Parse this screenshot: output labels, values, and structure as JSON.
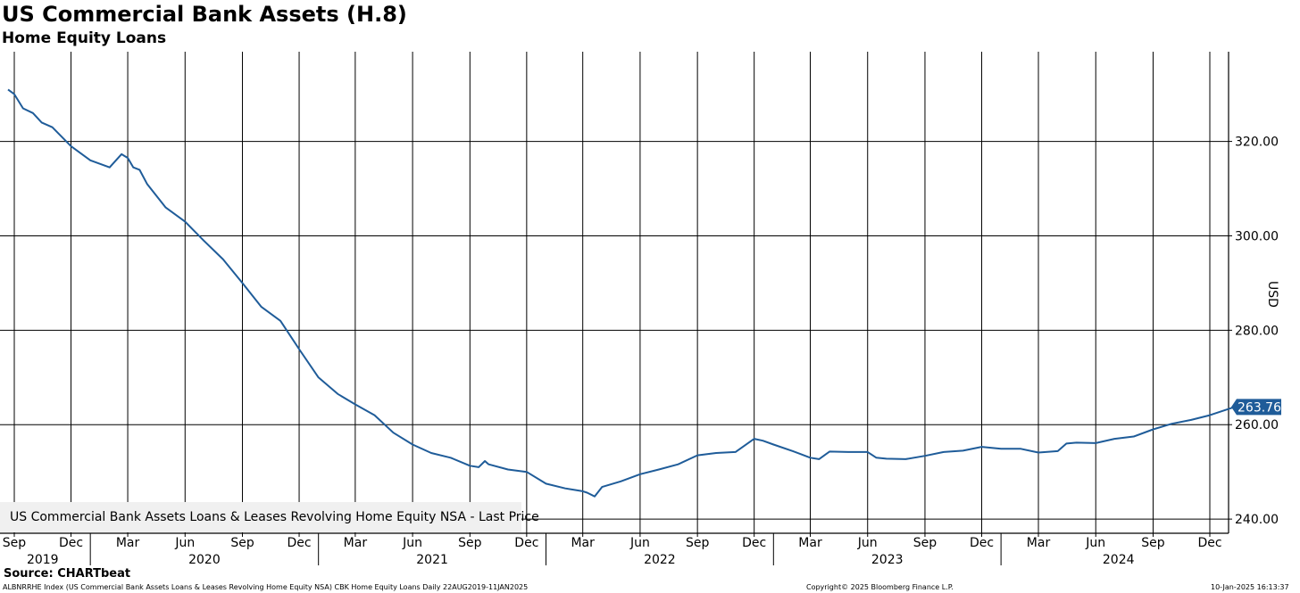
{
  "title": "US Commercial Bank Assets (H.8)",
  "subtitle": "Home Equity Loans",
  "source": "Source: CHARTbeat",
  "footer": {
    "left": "ALBNRRHE Index (US Commercial Bank Assets Loans & Leases Revolving Home Equity NSA) CBK Home Equity Loans  Daily 22AUG2019-11JAN2025",
    "center": "Copyright© 2025 Bloomberg Finance L.P.",
    "right": "10-Jan-2025 16:13:37"
  },
  "colors": {
    "series": "#1f5c99",
    "grid": "#000000"
  },
  "chart_data": {
    "type": "line",
    "ylabel": "USD",
    "ylim": [
      237,
      339
    ],
    "yticks": [
      240,
      260,
      280,
      300,
      320
    ],
    "ytick_labels": [
      "240.00",
      "260.00",
      "280.00",
      "300.00",
      "320.00"
    ],
    "x_months": [
      "Sep",
      "Dec",
      "Mar",
      "Jun",
      "Sep",
      "Dec",
      "Mar",
      "Jun",
      "Sep",
      "Dec",
      "Mar",
      "Jun",
      "Sep",
      "Dec",
      "Mar",
      "Jun",
      "Sep",
      "Dec",
      "Mar",
      "Jun",
      "Sep",
      "Dec"
    ],
    "x_years": [
      "2019",
      "2020",
      "2021",
      "2022",
      "2023",
      "2024"
    ],
    "grid": true,
    "legend_position": "bottom-left",
    "last_value_label": "263.76",
    "series": [
      {
        "name": "US Commercial Bank Assets Loans & Leases Revolving Home Equity NSA - Last Price",
        "x": [
          "2019-08-22",
          "2019-09-01",
          "2019-09-15",
          "2019-10-01",
          "2019-10-15",
          "2019-11-01",
          "2019-12-01",
          "2020-01-01",
          "2020-02-01",
          "2020-02-20",
          "2020-03-01",
          "2020-03-10",
          "2020-03-20",
          "2020-04-01",
          "2020-05-01",
          "2020-06-01",
          "2020-07-01",
          "2020-08-01",
          "2020-09-01",
          "2020-10-01",
          "2020-11-01",
          "2020-12-01",
          "2021-01-01",
          "2021-02-01",
          "2021-03-01",
          "2021-04-01",
          "2021-05-01",
          "2021-06-01",
          "2021-07-01",
          "2021-08-01",
          "2021-09-01",
          "2021-09-15",
          "2021-09-25",
          "2021-10-01",
          "2021-11-01",
          "2021-12-01",
          "2022-01-01",
          "2022-02-01",
          "2022-03-01",
          "2022-03-08",
          "2022-03-20",
          "2022-04-01",
          "2022-05-01",
          "2022-06-01",
          "2022-07-01",
          "2022-08-01",
          "2022-09-01",
          "2022-10-01",
          "2022-11-01",
          "2022-12-01",
          "2022-12-15",
          "2023-01-01",
          "2023-02-01",
          "2023-03-01",
          "2023-03-15",
          "2023-04-01",
          "2023-05-01",
          "2023-06-01",
          "2023-06-15",
          "2023-07-01",
          "2023-08-01",
          "2023-09-01",
          "2023-10-01",
          "2023-11-01",
          "2023-12-01",
          "2024-01-01",
          "2024-02-01",
          "2024-03-01",
          "2024-04-01",
          "2024-04-15",
          "2024-05-01",
          "2024-06-01",
          "2024-07-01",
          "2024-08-01",
          "2024-09-01",
          "2024-10-01",
          "2024-11-01",
          "2024-12-01",
          "2025-01-10"
        ],
        "values": [
          331.0,
          330.0,
          327.0,
          326.0,
          324.0,
          323.0,
          319.0,
          316.0,
          314.5,
          317.3,
          316.5,
          314.5,
          314.0,
          311.0,
          306.0,
          303.0,
          299.0,
          295.0,
          290.0,
          285.0,
          282.0,
          276.0,
          270.0,
          266.5,
          264.3,
          262.0,
          258.3,
          255.8,
          254.0,
          253.0,
          251.3,
          251.0,
          252.3,
          251.6,
          250.5,
          250.0,
          247.5,
          246.5,
          245.9,
          245.6,
          244.8,
          246.8,
          248.0,
          249.5,
          250.5,
          251.6,
          253.5,
          254.0,
          254.2,
          257.0,
          256.6,
          255.8,
          254.4,
          253.0,
          252.7,
          254.3,
          254.2,
          254.2,
          253.0,
          252.8,
          252.7,
          253.4,
          254.2,
          254.5,
          255.3,
          254.9,
          254.9,
          254.1,
          254.4,
          256.0,
          256.2,
          256.1,
          257.0,
          257.5,
          259.0,
          260.2,
          261.0,
          262.0,
          263.76
        ]
      }
    ]
  }
}
